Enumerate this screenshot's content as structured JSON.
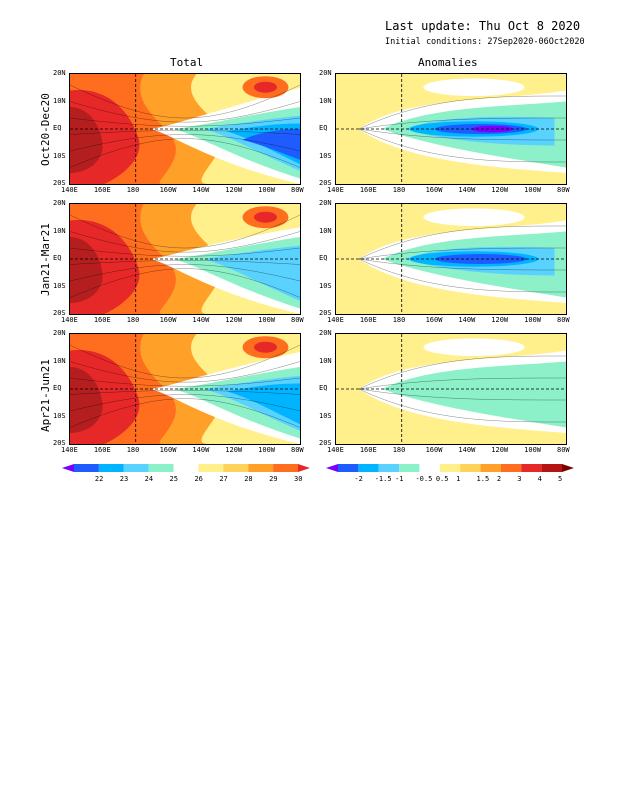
{
  "header": {
    "last_update": "Last update: Thu Oct  8 2020",
    "initial_conditions": "Initial conditions: 27Sep2020-06Oct2020"
  },
  "columns": {
    "total": "Total",
    "anomalies": "Anomalies"
  },
  "rows": [
    {
      "label": "Oct20-Dec20"
    },
    {
      "label": "Jan21-Mar21"
    },
    {
      "label": "Apr21-Jun21"
    }
  ],
  "axes": {
    "lat_labels": [
      "20N",
      "10N",
      "EQ",
      "10S",
      "20S"
    ],
    "lon_labels": [
      "140E",
      "160E",
      "180",
      "160W",
      "140W",
      "120W",
      "100W",
      "80W"
    ]
  },
  "colorbars": {
    "total": {
      "labels": [
        "22",
        "23",
        "24",
        "25",
        "26",
        "27",
        "28",
        "29",
        "30"
      ],
      "colors": [
        "#7a00ff",
        "#1e5cff",
        "#00b4ff",
        "#5ad2ff",
        "#8cf0c8",
        "#ffffff",
        "#fff08c",
        "#ffd25a",
        "#ffa028",
        "#ff6e1e",
        "#e62828"
      ]
    },
    "anomalies": {
      "labels": [
        "-2",
        "-1.5",
        "-1",
        "-0.5",
        "0.5",
        "1",
        "1.5",
        "2",
        "3",
        "4",
        "5"
      ],
      "colors": [
        "#7a00ff",
        "#1e5cff",
        "#00b4ff",
        "#5ad2ff",
        "#8cf0c8",
        "#ffffff",
        "#fff08c",
        "#ffd25a",
        "#ffa028",
        "#ff6e1e",
        "#e62828",
        "#b41414",
        "#780000"
      ]
    }
  }
}
